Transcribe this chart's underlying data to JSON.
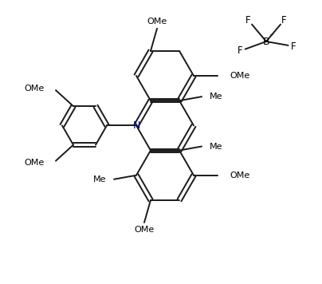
{
  "bg": "#ffffff",
  "lc": "#1a1a1a",
  "nc": "#000080",
  "tc": "#000000",
  "lw": 1.4,
  "sep": 2.8,
  "R": 36,
  "ph_R": 28,
  "small_R": 22,
  "uc": [
    207,
    95
  ],
  "N_label": "N",
  "BF4_B": [
    334,
    52
  ],
  "BF4_label": "B"
}
